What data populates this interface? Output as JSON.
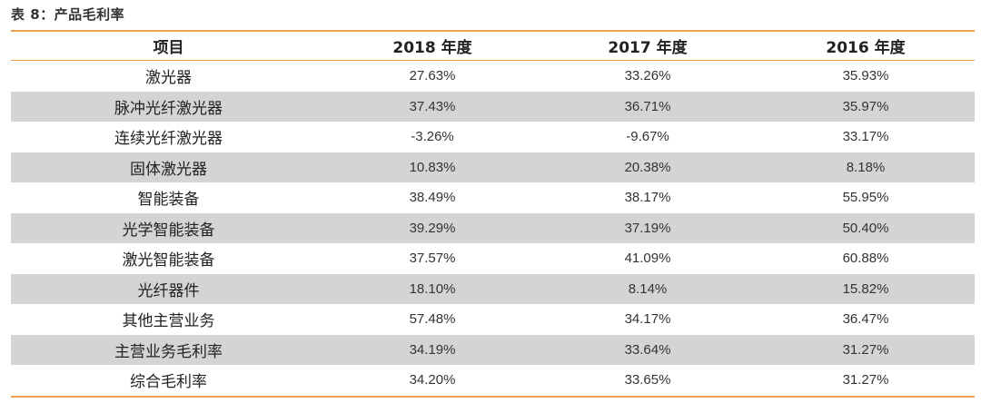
{
  "caption": "表 8：产品毛利率",
  "headers": [
    "项目",
    "2018 年度",
    "2017 年度",
    "2016 年度"
  ],
  "rows": [
    [
      "激光器",
      "27.63%",
      "33.26%",
      "35.93%"
    ],
    [
      "脉冲光纤激光器",
      "37.43%",
      "36.71%",
      "35.97%"
    ],
    [
      "连续光纤激光器",
      "-3.26%",
      "-9.67%",
      "33.17%"
    ],
    [
      "固体激光器",
      "10.83%",
      "20.38%",
      "8.18%"
    ],
    [
      "智能装备",
      "38.49%",
      "38.17%",
      "55.95%"
    ],
    [
      "光学智能装备",
      "39.29%",
      "37.19%",
      "50.40%"
    ],
    [
      "激光智能装备",
      "37.57%",
      "41.09%",
      "60.88%"
    ],
    [
      "光纤器件",
      "18.10%",
      "8.14%",
      "15.82%"
    ],
    [
      "其他主营业务",
      "57.48%",
      "34.17%",
      "36.47%"
    ],
    [
      "主营业务毛利率",
      "34.19%",
      "33.64%",
      "31.27%"
    ],
    [
      "综合毛利率",
      "34.20%",
      "33.65%",
      "31.27%"
    ]
  ],
  "colors": {
    "accent_rule": "#f0a050",
    "stripe": "#d4d4d4"
  }
}
